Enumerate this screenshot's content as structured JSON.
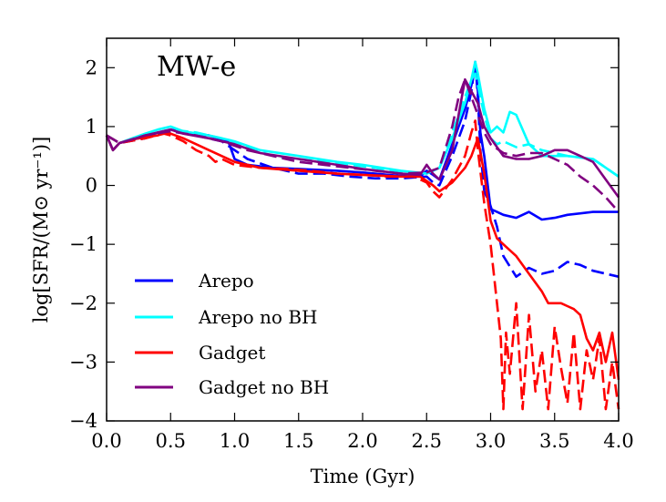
{
  "chart_data": {
    "type": "line",
    "title": "MW-e",
    "xlabel": "Time (Gyr)",
    "ylabel": "log[SFR/(M⊙ yr⁻¹)]",
    "xlim": [
      0.0,
      4.0
    ],
    "ylim": [
      -4,
      2.5
    ],
    "xticks": [
      "0.0",
      "0.5",
      "1.0",
      "1.5",
      "2.0",
      "2.5",
      "3.0",
      "3.5",
      "4.0"
    ],
    "yticks": [
      "2",
      "1",
      "0",
      "−1",
      "−2",
      "−3",
      "−4"
    ],
    "grid": false,
    "legend": {
      "placement": "lower-left"
    },
    "series": [
      {
        "name": "Arepo",
        "color": "#0000ff",
        "dash": "solid",
        "in_legend": true,
        "x": [
          0.0,
          0.05,
          0.1,
          0.2,
          0.3,
          0.4,
          0.5,
          0.6,
          0.8,
          0.95,
          1.0,
          1.1,
          1.3,
          1.5,
          1.8,
          2.0,
          2.3,
          2.45,
          2.5,
          2.55,
          2.6,
          2.7,
          2.8,
          2.85,
          2.88,
          2.9,
          2.92,
          2.95,
          3.0,
          3.05,
          3.1,
          3.2,
          3.3,
          3.4,
          3.5,
          3.6,
          3.8,
          4.0
        ],
        "y": [
          0.85,
          0.6,
          0.72,
          0.78,
          0.82,
          0.9,
          0.95,
          0.9,
          0.85,
          0.75,
          0.45,
          0.35,
          0.3,
          0.28,
          0.25,
          0.22,
          0.16,
          0.15,
          0.25,
          0.18,
          0.1,
          0.7,
          1.3,
          1.7,
          2.05,
          1.6,
          0.9,
          0.5,
          -0.4,
          -0.45,
          -0.5,
          -0.55,
          -0.45,
          -0.58,
          -0.55,
          -0.5,
          -0.45,
          -0.45
        ]
      },
      {
        "name": "Arepo",
        "color": "#0000ff",
        "dash": "dashed",
        "in_legend": false,
        "x": [
          0.0,
          0.1,
          0.3,
          0.5,
          0.7,
          0.9,
          1.1,
          1.3,
          1.5,
          1.7,
          1.9,
          2.1,
          2.3,
          2.5,
          2.55,
          2.6,
          2.7,
          2.8,
          2.85,
          2.88,
          2.9,
          2.92,
          2.95,
          3.0,
          3.05,
          3.1,
          3.2,
          3.3,
          3.4,
          3.5,
          3.6,
          3.7,
          3.8,
          4.0
        ],
        "y": [
          0.85,
          0.72,
          0.8,
          0.92,
          0.85,
          0.75,
          0.45,
          0.3,
          0.2,
          0.2,
          0.15,
          0.12,
          0.12,
          0.15,
          0.05,
          0.0,
          0.5,
          1.1,
          1.6,
          2.1,
          1.5,
          0.6,
          -0.1,
          -0.35,
          -0.7,
          -1.2,
          -1.55,
          -1.4,
          -1.5,
          -1.45,
          -1.3,
          -1.35,
          -1.45,
          -1.55
        ]
      },
      {
        "name": "Arepo no BH",
        "color": "#00ffff",
        "dash": "solid",
        "in_legend": true,
        "x": [
          0.0,
          0.05,
          0.1,
          0.2,
          0.3,
          0.4,
          0.5,
          0.6,
          0.8,
          1.0,
          1.2,
          1.5,
          1.8,
          2.0,
          2.3,
          2.5,
          2.6,
          2.7,
          2.8,
          2.85,
          2.88,
          2.9,
          2.95,
          3.0,
          3.05,
          3.1,
          3.15,
          3.2,
          3.3,
          3.4,
          3.6,
          3.8,
          4.0
        ],
        "y": [
          0.85,
          0.6,
          0.72,
          0.8,
          0.88,
          0.95,
          1.0,
          0.92,
          0.85,
          0.75,
          0.6,
          0.5,
          0.4,
          0.35,
          0.25,
          0.2,
          0.3,
          0.8,
          1.4,
          1.8,
          2.1,
          1.9,
          1.3,
          0.9,
          1.0,
          0.9,
          1.25,
          1.2,
          0.7,
          0.5,
          0.5,
          0.45,
          0.15
        ]
      },
      {
        "name": "Arepo no BH",
        "color": "#00ffff",
        "dash": "dashed",
        "in_legend": false,
        "x": [
          0.0,
          0.1,
          0.3,
          0.5,
          0.7,
          0.9,
          1.1,
          1.3,
          1.5,
          1.7,
          1.9,
          2.1,
          2.3,
          2.5,
          2.6,
          2.7,
          2.8,
          2.85,
          2.88,
          2.9,
          2.95,
          3.0,
          3.05,
          3.1,
          3.2,
          3.3,
          3.4,
          3.6,
          3.8,
          4.0
        ],
        "y": [
          0.85,
          0.72,
          0.85,
          0.95,
          0.9,
          0.8,
          0.65,
          0.5,
          0.45,
          0.4,
          0.35,
          0.3,
          0.22,
          0.2,
          0.3,
          0.9,
          1.5,
          1.8,
          1.9,
          1.7,
          1.2,
          0.8,
          0.7,
          0.75,
          0.65,
          0.7,
          0.6,
          0.5,
          0.45,
          0.15
        ]
      },
      {
        "name": "Gadget",
        "color": "#ff0000",
        "dash": "solid",
        "in_legend": true,
        "x": [
          0.0,
          0.05,
          0.1,
          0.2,
          0.3,
          0.4,
          0.45,
          0.5,
          0.6,
          0.8,
          1.0,
          1.2,
          1.5,
          1.8,
          2.0,
          2.3,
          2.45,
          2.55,
          2.6,
          2.7,
          2.8,
          2.85,
          2.9,
          2.95,
          3.0,
          3.05,
          3.1,
          3.2,
          3.3,
          3.4,
          3.45,
          3.5,
          3.55,
          3.6,
          3.65,
          3.7,
          3.75,
          3.8,
          3.85,
          3.9,
          3.95,
          4.0
        ],
        "y": [
          0.85,
          0.6,
          0.72,
          0.78,
          0.82,
          0.85,
          0.9,
          0.88,
          0.8,
          0.6,
          0.4,
          0.3,
          0.25,
          0.2,
          0.18,
          0.15,
          0.15,
          0.0,
          -0.1,
          0.05,
          0.3,
          0.5,
          0.8,
          0.2,
          -0.6,
          -0.9,
          -1.0,
          -1.2,
          -1.5,
          -1.8,
          -2.0,
          -2.0,
          -2.0,
          -2.05,
          -2.1,
          -2.2,
          -2.6,
          -2.8,
          -2.5,
          -3.0,
          -2.5,
          -3.3
        ]
      },
      {
        "name": "Gadget",
        "color": "#ff0000",
        "dash": "dashed",
        "in_legend": false,
        "x": [
          0.0,
          0.1,
          0.3,
          0.45,
          0.5,
          0.6,
          0.7,
          0.8,
          0.85,
          0.9,
          1.0,
          1.2,
          1.4,
          1.6,
          1.8,
          2.0,
          2.2,
          2.4,
          2.5,
          2.55,
          2.6,
          2.7,
          2.8,
          2.85,
          2.88,
          2.9,
          2.95,
          3.0,
          3.02,
          3.05,
          3.08,
          3.1,
          3.12,
          3.15,
          3.2,
          3.25,
          3.3,
          3.35,
          3.4,
          3.45,
          3.5,
          3.55,
          3.6,
          3.65,
          3.7,
          3.75,
          3.8,
          3.85,
          3.9,
          3.95,
          4.0
        ],
        "y": [
          0.85,
          0.72,
          0.8,
          0.88,
          0.85,
          0.75,
          0.6,
          0.5,
          0.4,
          0.45,
          0.35,
          0.3,
          0.28,
          0.25,
          0.2,
          0.18,
          0.15,
          0.15,
          0.05,
          -0.1,
          -0.2,
          0.1,
          0.5,
          0.9,
          1.1,
          0.6,
          -0.3,
          -1.0,
          -1.4,
          -2.0,
          -2.6,
          -3.8,
          -2.5,
          -3.2,
          -2.0,
          -3.8,
          -2.2,
          -3.5,
          -2.8,
          -3.8,
          -2.4,
          -3.1,
          -3.7,
          -2.5,
          -3.8,
          -2.8,
          -3.3,
          -2.6,
          -3.8,
          -3.0,
          -3.8
        ]
      },
      {
        "name": "Gadget no BH",
        "color": "#800080",
        "dash": "solid",
        "in_legend": true,
        "x": [
          0.0,
          0.05,
          0.1,
          0.2,
          0.3,
          0.4,
          0.5,
          0.6,
          0.8,
          1.0,
          1.2,
          1.5,
          1.8,
          2.0,
          2.3,
          2.45,
          2.5,
          2.55,
          2.6,
          2.7,
          2.75,
          2.8,
          2.85,
          2.9,
          2.95,
          3.0,
          3.1,
          3.2,
          3.3,
          3.4,
          3.5,
          3.6,
          3.7,
          3.8,
          3.9,
          4.0
        ],
        "y": [
          0.85,
          0.6,
          0.72,
          0.78,
          0.85,
          0.9,
          0.95,
          0.88,
          0.8,
          0.7,
          0.55,
          0.45,
          0.35,
          0.28,
          0.2,
          0.18,
          0.35,
          0.2,
          0.1,
          0.6,
          1.2,
          1.8,
          1.6,
          1.4,
          1.0,
          0.8,
          0.5,
          0.45,
          0.45,
          0.5,
          0.6,
          0.6,
          0.5,
          0.4,
          0.1,
          -0.2
        ]
      },
      {
        "name": "Gadget no BH",
        "color": "#800080",
        "dash": "dashed",
        "in_legend": false,
        "x": [
          0.0,
          0.1,
          0.3,
          0.5,
          0.7,
          0.9,
          1.1,
          1.3,
          1.5,
          1.7,
          1.9,
          2.1,
          2.3,
          2.5,
          2.6,
          2.7,
          2.75,
          2.8,
          2.85,
          2.9,
          2.95,
          3.0,
          3.1,
          3.2,
          3.3,
          3.4,
          3.5,
          3.6,
          3.7,
          3.8,
          3.9,
          4.0
        ],
        "y": [
          0.85,
          0.72,
          0.85,
          0.92,
          0.85,
          0.75,
          0.6,
          0.5,
          0.4,
          0.35,
          0.3,
          0.25,
          0.2,
          0.22,
          0.3,
          1.0,
          1.5,
          1.8,
          1.5,
          1.2,
          0.9,
          0.7,
          0.55,
          0.5,
          0.55,
          0.55,
          0.45,
          0.35,
          0.15,
          0.0,
          -0.2,
          -0.45
        ]
      }
    ]
  }
}
